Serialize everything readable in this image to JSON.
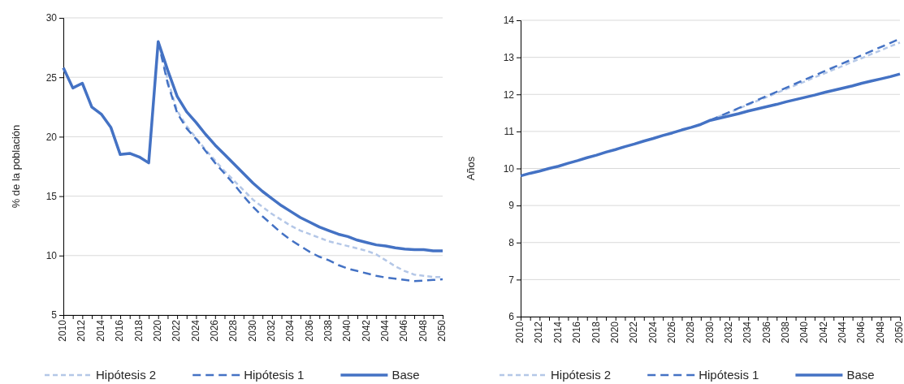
{
  "chart_data": [
    {
      "type": "line",
      "ylabel": "% de la población",
      "legend": "bottom",
      "grid": "y",
      "ylim": [
        5,
        30
      ],
      "yticks": [
        5,
        10,
        15,
        20,
        25,
        30
      ],
      "xlim": [
        2010,
        2050
      ],
      "xticks": [
        2010,
        {
          "value": 2011,
          "label": null
        },
        2012,
        {
          "value": 2013,
          "label": null
        },
        2014,
        {
          "value": 2015,
          "label": null
        },
        2016,
        {
          "value": 2017,
          "label": null
        },
        2018,
        {
          "value": 2019,
          "label": null
        },
        2020,
        {
          "value": 2021,
          "label": null
        },
        2022,
        {
          "value": 2023,
          "label": null
        },
        2024,
        {
          "value": 2025,
          "label": null
        },
        2026,
        {
          "value": 2027,
          "label": null
        },
        2028,
        {
          "value": 2029,
          "label": null
        },
        2030,
        {
          "value": 2031,
          "label": null
        },
        2032,
        {
          "value": 2033,
          "label": null
        },
        2034,
        {
          "value": 2035,
          "label": null
        },
        2036,
        {
          "value": 2037,
          "label": null
        },
        2038,
        {
          "value": 2039,
          "label": null
        },
        2040,
        {
          "value": 2041,
          "label": null
        },
        2042,
        {
          "value": 2043,
          "label": null
        },
        2044,
        {
          "value": 2045,
          "label": null
        },
        2046,
        {
          "value": 2047,
          "label": null
        },
        2048,
        {
          "value": 2049,
          "label": null
        },
        2050
      ],
      "series": [
        {
          "name": "Hipótesis 2",
          "color": "#b4c7e7",
          "line_style": "dashed",
          "x": [
            2020,
            2021,
            2022,
            2023,
            2024,
            2025,
            2026,
            2027,
            2028,
            2029,
            2030,
            2031,
            2032,
            2033,
            2034,
            2035,
            2036,
            2037,
            2038,
            2039,
            2040,
            2041,
            2042,
            2043,
            2044,
            2045,
            2046,
            2047,
            2048,
            2049,
            2050
          ],
          "values": [
            28.0,
            24.8,
            22.2,
            20.9,
            19.9,
            18.9,
            18.0,
            17.1,
            16.3,
            15.5,
            14.7,
            14.1,
            13.5,
            13.0,
            12.5,
            12.1,
            11.8,
            11.5,
            11.2,
            11.0,
            10.8,
            10.6,
            10.4,
            10.1,
            9.6,
            9.1,
            8.7,
            8.4,
            8.3,
            8.2,
            8.2
          ]
        },
        {
          "name": "Hipótesis 1",
          "color": "#4472c4",
          "line_style": "dashed",
          "x": [
            2020,
            2021,
            2022,
            2023,
            2024,
            2025,
            2026,
            2027,
            2028,
            2029,
            2030,
            2031,
            2032,
            2033,
            2034,
            2035,
            2036,
            2037,
            2038,
            2039,
            2040,
            2041,
            2042,
            2043,
            2044,
            2045,
            2046,
            2047,
            2048,
            2049,
            2050
          ],
          "values": [
            28.0,
            24.5,
            22.0,
            20.7,
            19.8,
            18.8,
            17.8,
            16.9,
            16.0,
            15.0,
            14.1,
            13.3,
            12.6,
            11.9,
            11.3,
            10.8,
            10.3,
            9.9,
            9.6,
            9.2,
            8.9,
            8.7,
            8.5,
            8.3,
            8.15,
            8.05,
            7.95,
            7.85,
            7.9,
            7.95,
            8.0
          ]
        },
        {
          "name": "Base",
          "color": "#4472c4",
          "line_style": "solid",
          "x": [
            2010,
            2011,
            2012,
            2013,
            2014,
            2015,
            2016,
            2017,
            2018,
            2019,
            2020,
            2021,
            2022,
            2023,
            2024,
            2025,
            2026,
            2027,
            2028,
            2029,
            2030,
            2031,
            2032,
            2033,
            2034,
            2035,
            2036,
            2037,
            2038,
            2039,
            2040,
            2041,
            2042,
            2043,
            2044,
            2045,
            2046,
            2047,
            2048,
            2049,
            2050
          ],
          "values": [
            25.8,
            24.1,
            24.5,
            22.5,
            21.9,
            20.8,
            18.5,
            18.6,
            18.3,
            17.8,
            28.0,
            25.6,
            23.4,
            22.1,
            21.2,
            20.2,
            19.3,
            18.5,
            17.7,
            16.9,
            16.1,
            15.4,
            14.8,
            14.2,
            13.7,
            13.2,
            12.8,
            12.4,
            12.1,
            11.8,
            11.6,
            11.3,
            11.1,
            10.9,
            10.8,
            10.65,
            10.55,
            10.5,
            10.5,
            10.4,
            10.4
          ]
        }
      ]
    },
    {
      "type": "line",
      "ylabel": "Años",
      "legend": "bottom",
      "grid": "y",
      "ylim": [
        6,
        14
      ],
      "yticks": [
        6,
        7,
        8,
        9,
        10,
        11,
        12,
        13,
        14
      ],
      "xlim": [
        2010,
        2050
      ],
      "xticks": [
        2010,
        {
          "value": 2011,
          "label": null
        },
        2012,
        {
          "value": 2013,
          "label": null
        },
        2014,
        {
          "value": 2015,
          "label": null
        },
        2016,
        {
          "value": 2017,
          "label": null
        },
        2018,
        {
          "value": 2019,
          "label": null
        },
        2020,
        {
          "value": 2021,
          "label": null
        },
        2022,
        {
          "value": 2023,
          "label": null
        },
        2024,
        {
          "value": 2025,
          "label": null
        },
        2026,
        {
          "value": 2027,
          "label": null
        },
        2028,
        {
          "value": 2029,
          "label": null
        },
        2030,
        {
          "value": 2031,
          "label": null
        },
        2032,
        {
          "value": 2033,
          "label": null
        },
        2034,
        {
          "value": 2035,
          "label": null
        },
        2036,
        {
          "value": 2037,
          "label": null
        },
        2038,
        {
          "value": 2039,
          "label": null
        },
        2040,
        {
          "value": 2041,
          "label": null
        },
        2042,
        {
          "value": 2043,
          "label": null
        },
        2044,
        {
          "value": 2045,
          "label": null
        },
        2046,
        {
          "value": 2047,
          "label": null
        },
        2048,
        {
          "value": 2049,
          "label": null
        },
        2050
      ],
      "series": [
        {
          "name": "Hipótesis 2",
          "color": "#b4c7e7",
          "line_style": "dashed",
          "x": [
            2030,
            2031,
            2032,
            2033,
            2034,
            2035,
            2036,
            2037,
            2038,
            2039,
            2040,
            2041,
            2042,
            2043,
            2044,
            2045,
            2046,
            2047,
            2048,
            2049,
            2050
          ],
          "values": [
            11.3,
            11.41,
            11.51,
            11.62,
            11.72,
            11.83,
            11.93,
            12.04,
            12.14,
            12.25,
            12.35,
            12.46,
            12.56,
            12.67,
            12.77,
            12.88,
            12.98,
            13.09,
            13.19,
            13.3,
            13.4
          ]
        },
        {
          "name": "Hipótesis 1",
          "color": "#4472c4",
          "line_style": "dashed",
          "x": [
            2030,
            2031,
            2032,
            2033,
            2034,
            2035,
            2036,
            2037,
            2038,
            2039,
            2040,
            2041,
            2042,
            2043,
            2044,
            2045,
            2046,
            2047,
            2048,
            2049,
            2050
          ],
          "values": [
            11.3,
            11.41,
            11.52,
            11.63,
            11.74,
            11.85,
            11.96,
            12.07,
            12.18,
            12.29,
            12.4,
            12.51,
            12.62,
            12.73,
            12.84,
            12.95,
            13.06,
            13.17,
            13.28,
            13.39,
            13.5
          ]
        },
        {
          "name": "Base",
          "color": "#4472c4",
          "line_style": "solid",
          "x": [
            2010,
            2011,
            2012,
            2013,
            2014,
            2015,
            2016,
            2017,
            2018,
            2019,
            2020,
            2021,
            2022,
            2023,
            2024,
            2025,
            2026,
            2027,
            2028,
            2029,
            2030,
            2031,
            2032,
            2033,
            2034,
            2035,
            2036,
            2037,
            2038,
            2039,
            2040,
            2041,
            2042,
            2043,
            2044,
            2045,
            2046,
            2047,
            2048,
            2049,
            2050
          ],
          "values": [
            9.8,
            9.87,
            9.93,
            10.0,
            10.06,
            10.14,
            10.21,
            10.29,
            10.36,
            10.44,
            10.51,
            10.59,
            10.66,
            10.74,
            10.81,
            10.89,
            10.96,
            11.04,
            11.11,
            11.19,
            11.3,
            11.36,
            11.42,
            11.48,
            11.55,
            11.61,
            11.67,
            11.73,
            11.8,
            11.86,
            11.92,
            11.98,
            12.05,
            12.11,
            12.17,
            12.23,
            12.3,
            12.36,
            12.42,
            12.48,
            12.55
          ]
        }
      ]
    }
  ]
}
